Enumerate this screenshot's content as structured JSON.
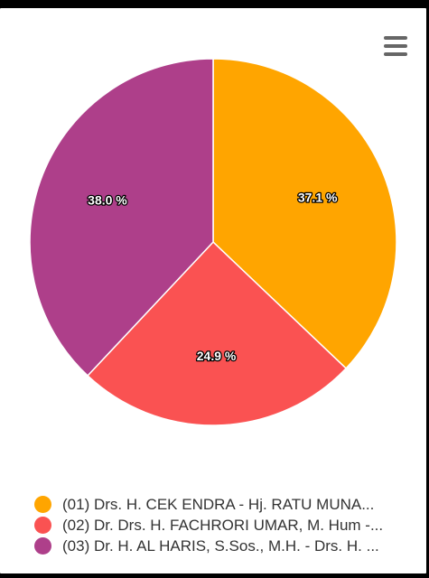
{
  "chart_data": {
    "type": "pie",
    "title": "",
    "categories": [
      "(01) Drs. H. CEK ENDRA - Hj. RATU MUNA...",
      "(02) Dr. Drs. H. FACHRORI UMAR, M. Hum -...",
      "(03) Dr. H. AL HARIS, S.Sos., M.H. - Drs. H. ..."
    ],
    "values": [
      37.1,
      24.9,
      38.0
    ],
    "labels": [
      "37.1 %",
      "24.9 %",
      "38.0 %"
    ],
    "colors": [
      "#FFA500",
      "#FA5252",
      "#AE3F8A"
    ],
    "legend_position": "bottom"
  },
  "toolbar": {
    "menu_icon": "hamburger-menu-icon"
  }
}
